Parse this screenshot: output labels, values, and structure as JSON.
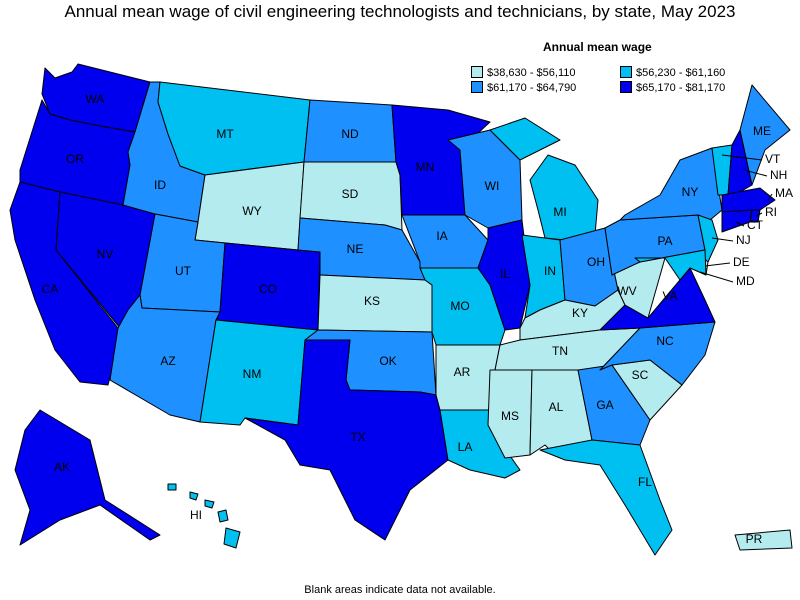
{
  "title": "Annual mean wage of civil engineering technologists and technicians, by state, May 2023",
  "legend": {
    "title": "Annual mean wage",
    "items": [
      {
        "label": "$38,630 - $56,110",
        "color": "#b3ebef"
      },
      {
        "label": "$56,230 - $61,160",
        "color": "#00c0f2"
      },
      {
        "label": "$61,170 - $64,790",
        "color": "#1e90ff"
      },
      {
        "label": "$65,170 - $81,170",
        "color": "#0000ee"
      }
    ]
  },
  "footnote": "Blank areas indicate data not available.",
  "states": {
    "WA": {
      "label": "WA",
      "bin": 3
    },
    "OR": {
      "label": "OR",
      "bin": 3
    },
    "CA": {
      "label": "CA",
      "bin": 3
    },
    "NV": {
      "label": "NV",
      "bin": 3
    },
    "ID": {
      "label": "ID",
      "bin": 2
    },
    "MT": {
      "label": "MT",
      "bin": 1
    },
    "WY": {
      "label": "WY",
      "bin": 0
    },
    "UT": {
      "label": "UT",
      "bin": 2
    },
    "CO": {
      "label": "CO",
      "bin": 3
    },
    "AZ": {
      "label": "AZ",
      "bin": 2
    },
    "NM": {
      "label": "NM",
      "bin": 1
    },
    "ND": {
      "label": "ND",
      "bin": 2
    },
    "SD": {
      "label": "SD",
      "bin": 0
    },
    "NE": {
      "label": "NE",
      "bin": 2
    },
    "KS": {
      "label": "KS",
      "bin": 0
    },
    "OK": {
      "label": "OK",
      "bin": 2
    },
    "TX": {
      "label": "TX",
      "bin": 3
    },
    "MN": {
      "label": "MN",
      "bin": 3
    },
    "IA": {
      "label": "IA",
      "bin": 2
    },
    "MO": {
      "label": "MO",
      "bin": 1
    },
    "AR": {
      "label": "AR",
      "bin": 0
    },
    "LA": {
      "label": "LA",
      "bin": 1
    },
    "WI": {
      "label": "WI",
      "bin": 2
    },
    "IL": {
      "label": "IL",
      "bin": 3
    },
    "MI": {
      "label": "MI",
      "bin": 1
    },
    "IN": {
      "label": "IN",
      "bin": 1
    },
    "OH": {
      "label": "OH",
      "bin": 2
    },
    "KY": {
      "label": "KY",
      "bin": 0
    },
    "TN": {
      "label": "TN",
      "bin": 0
    },
    "MS": {
      "label": "MS",
      "bin": 0
    },
    "AL": {
      "label": "AL",
      "bin": 0
    },
    "GA": {
      "label": "GA",
      "bin": 2
    },
    "FL": {
      "label": "FL",
      "bin": 1
    },
    "SC": {
      "label": "SC",
      "bin": 0
    },
    "NC": {
      "label": "NC",
      "bin": 2
    },
    "VA": {
      "label": "VA",
      "bin": 3
    },
    "WV": {
      "label": "WV",
      "bin": 0
    },
    "PA": {
      "label": "PA",
      "bin": 2
    },
    "NY": {
      "label": "NY",
      "bin": 2
    },
    "VT": {
      "label": "VT",
      "bin": 1
    },
    "NH": {
      "label": "NH",
      "bin": 3
    },
    "ME": {
      "label": "ME",
      "bin": 2
    },
    "MA": {
      "label": "MA",
      "bin": 3
    },
    "RI": {
      "label": "RI",
      "bin": 3
    },
    "CT": {
      "label": "CT",
      "bin": 3
    },
    "NJ": {
      "label": "NJ",
      "bin": 1
    },
    "DE": {
      "label": "DE",
      "bin": 0
    },
    "MD": {
      "label": "MD",
      "bin": 1
    },
    "AK": {
      "label": "AK",
      "bin": 3
    },
    "HI": {
      "label": "HI",
      "bin": 1
    },
    "PR": {
      "label": "PR",
      "bin": 0
    }
  }
}
